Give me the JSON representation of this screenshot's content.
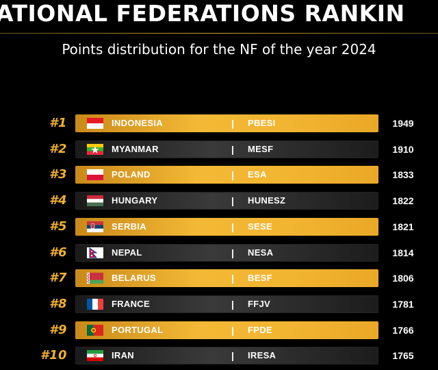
{
  "header": {
    "title": "ATIONAL FEDERATIONS RANKIN",
    "subtitle": "Points distribution for the NF of the year 2024"
  },
  "ranking": [
    {
      "rank": "#1",
      "country": "INDONESIA",
      "separator": "|",
      "federation": "PBESI",
      "points": "1949",
      "style": "gold",
      "flag_icon": "indonesia-flag-icon"
    },
    {
      "rank": "#2",
      "country": "MYANMAR",
      "separator": "|",
      "federation": "MESF",
      "points": "1910",
      "style": "dark",
      "flag_icon": "myanmar-flag-icon"
    },
    {
      "rank": "#3",
      "country": "POLAND",
      "separator": "|",
      "federation": "ESA",
      "points": "1833",
      "style": "gold",
      "flag_icon": "poland-flag-icon"
    },
    {
      "rank": "#4",
      "country": "HUNGARY",
      "separator": "|",
      "federation": "HUNESZ",
      "points": "1822",
      "style": "dark",
      "flag_icon": "hungary-flag-icon"
    },
    {
      "rank": "#5",
      "country": "SERBIA",
      "separator": "|",
      "federation": "SESE",
      "points": "1821",
      "style": "gold",
      "flag_icon": "serbia-flag-icon"
    },
    {
      "rank": "#6",
      "country": "NEPAL",
      "separator": "|",
      "federation": "NESA",
      "points": "1814",
      "style": "dark",
      "flag_icon": "nepal-flag-icon"
    },
    {
      "rank": "#7",
      "country": "BELARUS",
      "separator": "|",
      "federation": "BESF",
      "points": "1806",
      "style": "gold",
      "flag_icon": "belarus-flag-icon"
    },
    {
      "rank": "#8",
      "country": "FRANCE",
      "separator": "|",
      "federation": "FFJV",
      "points": "1781",
      "style": "dark",
      "flag_icon": "france-flag-icon"
    },
    {
      "rank": "#9",
      "country": "PORTUGAL",
      "separator": "|",
      "federation": "FPDE",
      "points": "1766",
      "style": "gold",
      "flag_icon": "portugal-flag-icon"
    },
    {
      "rank": "#10",
      "country": "IRAN",
      "separator": "|",
      "federation": "IRESA",
      "points": "1765",
      "style": "dark",
      "flag_icon": "iran-flag-icon"
    }
  ],
  "colors": {
    "accent_gold": "#f3b835",
    "rank_gold": "#f0b030",
    "background": "#000000"
  }
}
